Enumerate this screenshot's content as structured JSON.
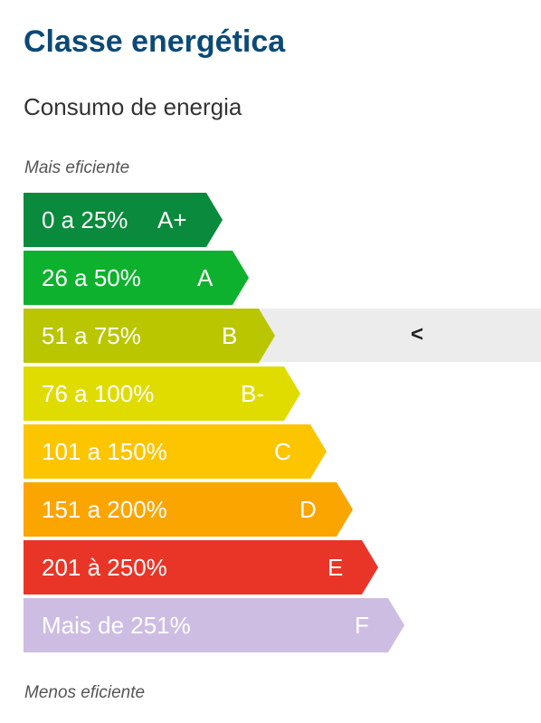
{
  "header": {
    "title": "Classe energética",
    "subtitle": "Consumo de energia"
  },
  "scale": {
    "top_caption": "Mais eficiente",
    "bottom_caption": "Menos eficiente",
    "selected_class": "B",
    "selected_indicator": "<",
    "rows": [
      {
        "range": "0 a 25%",
        "class": "A+",
        "color": "#0a8a3c"
      },
      {
        "range": "26 a 50%",
        "class": "A",
        "color": "#0eb12d"
      },
      {
        "range": "51 a 75%",
        "class": "B",
        "color": "#b9c600"
      },
      {
        "range": "76 a 100%",
        "class": "B-",
        "color": "#e0dc00"
      },
      {
        "range": "101 a 150%",
        "class": "C",
        "color": "#fcc500"
      },
      {
        "range": "151 a 200%",
        "class": "D",
        "color": "#fba600"
      },
      {
        "range": "201 à 250%",
        "class": "E",
        "color": "#e93527"
      },
      {
        "range": "Mais de 251%",
        "class": "F",
        "color": "#cdbde3"
      }
    ]
  }
}
